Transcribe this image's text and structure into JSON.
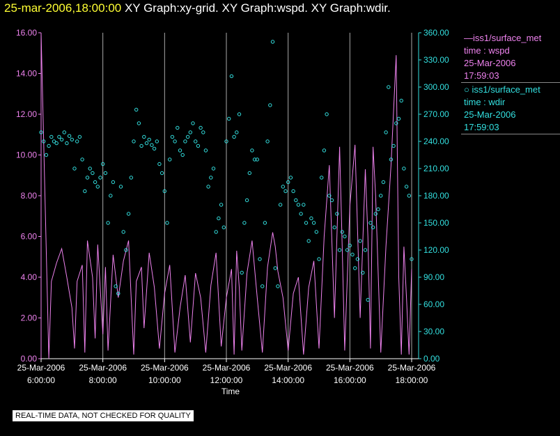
{
  "header": {
    "timestamp": "25-mar-2006,18:00:00",
    "graphs": "XY Graph:xy-grid.  XY Graph:wspd.  XY Graph:wdir."
  },
  "legend": {
    "wspd": {
      "title": "iss1/surface_met",
      "line2": "time : wspd",
      "line3": "25-Mar-2006",
      "line4": "17:59:03"
    },
    "wdir": {
      "title": "iss1/surface_met",
      "line2": "time : wdir",
      "line3": "25-Mar-2006",
      "line4": "17:59:03"
    }
  },
  "disclaimer": "REAL-TIME DATA, NOT CHECKED FOR QUALITY",
  "colors": {
    "wspd": "#ee82ee",
    "wdir": "#33e0e0",
    "title": "#ffff33",
    "background": "#000000",
    "grid": "#aaaaaa"
  },
  "chart_data": {
    "type": "line",
    "xlabel": "Time",
    "x_tick_labels": [
      [
        "25-Mar-2006",
        "6:00:00"
      ],
      [
        "25-Mar-2006",
        "8:00:00"
      ],
      [
        "25-Mar-2006",
        "10:00:00"
      ],
      [
        "25-Mar-2006",
        "12:00:00"
      ],
      [
        "25-Mar-2006",
        "14:00:00"
      ],
      [
        "25-Mar-2006",
        "16:00:00"
      ],
      [
        "25-Mar-2006",
        "18:00:00"
      ]
    ],
    "xlim": [
      "2006-03-25T06:00:00",
      "2006-03-25T18:00:00"
    ],
    "y_left": {
      "lim": [
        0,
        16
      ],
      "ticks": [
        "0.00",
        "2.00",
        "4.00",
        "6.00",
        "8.00",
        "10.00",
        "12.00",
        "14.00",
        "16.00"
      ]
    },
    "y_right": {
      "lim": [
        0,
        360
      ],
      "ticks": [
        "0.00",
        "30.00",
        "60.00",
        "90.00",
        "120.00",
        "150.00",
        "180.00",
        "210.00",
        "240.00",
        "270.00",
        "300.00",
        "330.00",
        "360.00"
      ]
    },
    "grid": "vertical lines at 2-hour ticks",
    "series": [
      {
        "name": "iss1/surface_met time : wspd",
        "axis": "left",
        "style": "line",
        "x": [
          "06:00",
          "06:15",
          "06:20",
          "06:30",
          "06:40",
          "06:50",
          "07:00",
          "07:05",
          "07:10",
          "07:20",
          "07:25",
          "07:30",
          "07:40",
          "07:45",
          "07:50",
          "08:00",
          "08:05",
          "08:10",
          "08:20",
          "08:30",
          "08:40",
          "08:50",
          "09:00",
          "09:05",
          "09:15",
          "09:20",
          "09:30",
          "09:40",
          "09:50",
          "10:00",
          "10:10",
          "10:20",
          "10:30",
          "10:40",
          "10:50",
          "11:00",
          "11:10",
          "11:20",
          "11:30",
          "11:40",
          "11:50",
          "12:00",
          "12:10",
          "12:15",
          "12:20",
          "12:25",
          "12:30",
          "12:40",
          "12:50",
          "13:00",
          "13:10",
          "13:20",
          "13:30",
          "13:35",
          "13:40",
          "13:50",
          "14:00",
          "14:10",
          "14:20",
          "14:30",
          "14:40",
          "14:50",
          "15:00",
          "15:10",
          "15:20",
          "15:30",
          "15:40",
          "15:45",
          "15:50",
          "16:00",
          "16:10",
          "16:20",
          "16:30",
          "16:35",
          "16:40",
          "16:45",
          "16:50",
          "17:00",
          "17:10",
          "17:20",
          "17:30",
          "17:35",
          "17:40",
          "17:45",
          "17:50",
          "17:55",
          "18:00"
        ],
        "y": [
          16.0,
          0.0,
          3.8,
          4.7,
          5.4,
          4.0,
          2.5,
          0.5,
          3.8,
          4.6,
          0.3,
          5.8,
          4.0,
          1.0,
          5.6,
          1.2,
          4.5,
          0.4,
          5.1,
          3.0,
          4.8,
          5.8,
          0.2,
          3.8,
          4.5,
          1.5,
          5.2,
          3.5,
          0.5,
          3.2,
          4.6,
          0.3,
          2.5,
          4.1,
          0.8,
          4.2,
          3.0,
          0.3,
          3.6,
          5.2,
          0.6,
          3.0,
          4.4,
          0.2,
          5.3,
          3.5,
          0.4,
          4.2,
          5.8,
          3.0,
          0.3,
          4.5,
          6.2,
          5.5,
          4.3,
          3.0,
          0.4,
          3.2,
          4.0,
          0.2,
          3.5,
          4.8,
          0.5,
          6.0,
          9.5,
          2.0,
          10.4,
          5.5,
          0.4,
          7.5,
          10.5,
          2.0,
          9.3,
          6.0,
          0.5,
          10.4,
          8.0,
          0.3,
          5.5,
          9.5,
          14.9,
          4.0,
          0.2,
          5.5,
          3.0,
          0.2,
          4.4
        ]
      },
      {
        "name": "iss1/surface_met time : wdir",
        "axis": "right",
        "style": "markers",
        "x": [
          "06:00",
          "06:05",
          "06:10",
          "06:15",
          "06:20",
          "06:25",
          "06:30",
          "06:35",
          "06:40",
          "06:45",
          "06:50",
          "06:55",
          "07:00",
          "07:05",
          "07:10",
          "07:15",
          "07:20",
          "07:25",
          "07:30",
          "07:35",
          "07:40",
          "07:45",
          "07:50",
          "07:55",
          "08:00",
          "08:05",
          "08:10",
          "08:15",
          "08:20",
          "08:25",
          "08:30",
          "08:35",
          "08:40",
          "08:45",
          "08:50",
          "08:55",
          "09:00",
          "09:05",
          "09:10",
          "09:15",
          "09:20",
          "09:25",
          "09:30",
          "09:35",
          "09:40",
          "09:45",
          "09:50",
          "09:55",
          "10:00",
          "10:05",
          "10:10",
          "10:15",
          "10:20",
          "10:25",
          "10:30",
          "10:35",
          "10:40",
          "10:45",
          "10:50",
          "10:55",
          "11:00",
          "11:05",
          "11:10",
          "11:15",
          "11:20",
          "11:25",
          "11:30",
          "11:35",
          "11:40",
          "11:45",
          "11:50",
          "11:55",
          "12:00",
          "12:05",
          "12:10",
          "12:15",
          "12:20",
          "12:25",
          "12:30",
          "12:35",
          "12:40",
          "12:45",
          "12:50",
          "12:55",
          "13:00",
          "13:05",
          "13:10",
          "13:15",
          "13:20",
          "13:25",
          "13:30",
          "13:35",
          "13:40",
          "13:45",
          "13:50",
          "13:55",
          "14:00",
          "14:05",
          "14:10",
          "14:15",
          "14:20",
          "14:25",
          "14:30",
          "14:35",
          "14:40",
          "14:45",
          "14:50",
          "14:55",
          "15:00",
          "15:05",
          "15:10",
          "15:15",
          "15:20",
          "15:25",
          "15:30",
          "15:35",
          "15:40",
          "15:45",
          "15:50",
          "15:55",
          "16:00",
          "16:05",
          "16:10",
          "16:15",
          "16:20",
          "16:25",
          "16:30",
          "16:35",
          "16:40",
          "16:45",
          "16:50",
          "16:55",
          "17:00",
          "17:05",
          "17:10",
          "17:15",
          "17:20",
          "17:25",
          "17:30",
          "17:35",
          "17:40",
          "17:45",
          "17:50",
          "17:55",
          "18:00"
        ],
        "y": [
          250,
          240,
          225,
          235,
          245,
          240,
          238,
          245,
          242,
          250,
          238,
          246,
          242,
          210,
          240,
          245,
          220,
          185,
          200,
          210,
          205,
          195,
          190,
          200,
          215,
          205,
          150,
          180,
          195,
          80,
          72,
          190,
          140,
          120,
          160,
          200,
          240,
          275,
          260,
          235,
          245,
          238,
          242,
          236,
          232,
          240,
          215,
          205,
          185,
          150,
          220,
          245,
          240,
          255,
          230,
          225,
          240,
          245,
          250,
          260,
          240,
          235,
          255,
          250,
          230,
          190,
          200,
          210,
          140,
          155,
          170,
          145,
          240,
          265,
          312,
          245,
          250,
          270,
          95,
          150,
          175,
          205,
          230,
          220,
          220,
          110,
          80,
          150,
          240,
          280,
          350,
          100,
          80,
          170,
          190,
          185,
          195,
          200,
          185,
          175,
          170,
          160,
          170,
          150,
          130,
          155,
          150,
          140,
          110,
          200,
          230,
          270,
          180,
          175,
          145,
          160,
          120,
          140,
          135,
          120,
          125,
          115,
          100,
          110,
          130,
          95,
          120,
          65,
          150,
          145,
          160,
          165,
          180,
          195,
          250,
          300,
          220,
          235,
          260,
          265,
          285,
          210,
          190,
          180,
          110
        ]
      }
    ]
  }
}
